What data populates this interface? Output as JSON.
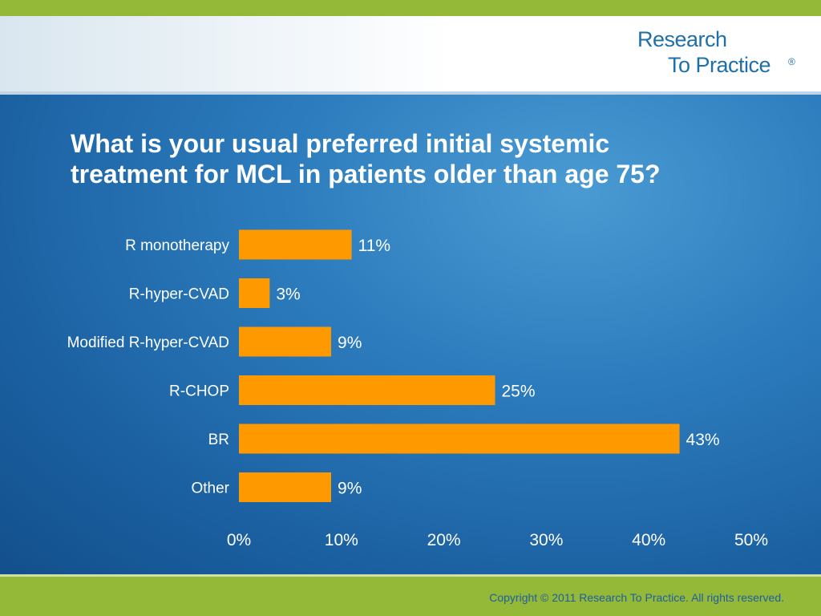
{
  "logo": {
    "line1": "Research",
    "line2": "To Practice",
    "mark": "®"
  },
  "title_line1": "What is your usual preferred initial systemic",
  "title_line2": "treatment for MCL in patients older than age 75?",
  "footer": {
    "copyright": "Copyright © 2011 Research To Practice. All rights reserved."
  },
  "colors": {
    "bar": "#ff9900",
    "top_bar": "#94b838",
    "panel": "#2d7dbe",
    "logo_text": "#1f6fa8"
  },
  "chart_data": {
    "type": "bar",
    "orientation": "horizontal",
    "categories": [
      "R monotherapy",
      "R-hyper-CVAD",
      "Modified R-hyper-CVAD",
      "R-CHOP",
      "BR",
      "Other"
    ],
    "values": [
      11,
      3,
      9,
      25,
      43,
      9
    ],
    "value_labels": [
      "11%",
      "3%",
      "9%",
      "25%",
      "43%",
      "9%"
    ],
    "x_ticks": [
      0,
      10,
      20,
      30,
      40,
      50
    ],
    "x_tick_labels": [
      "0%",
      "10%",
      "20%",
      "30%",
      "40%",
      "50%"
    ],
    "xlim": [
      0,
      50
    ],
    "grid": false,
    "legend": "none"
  }
}
